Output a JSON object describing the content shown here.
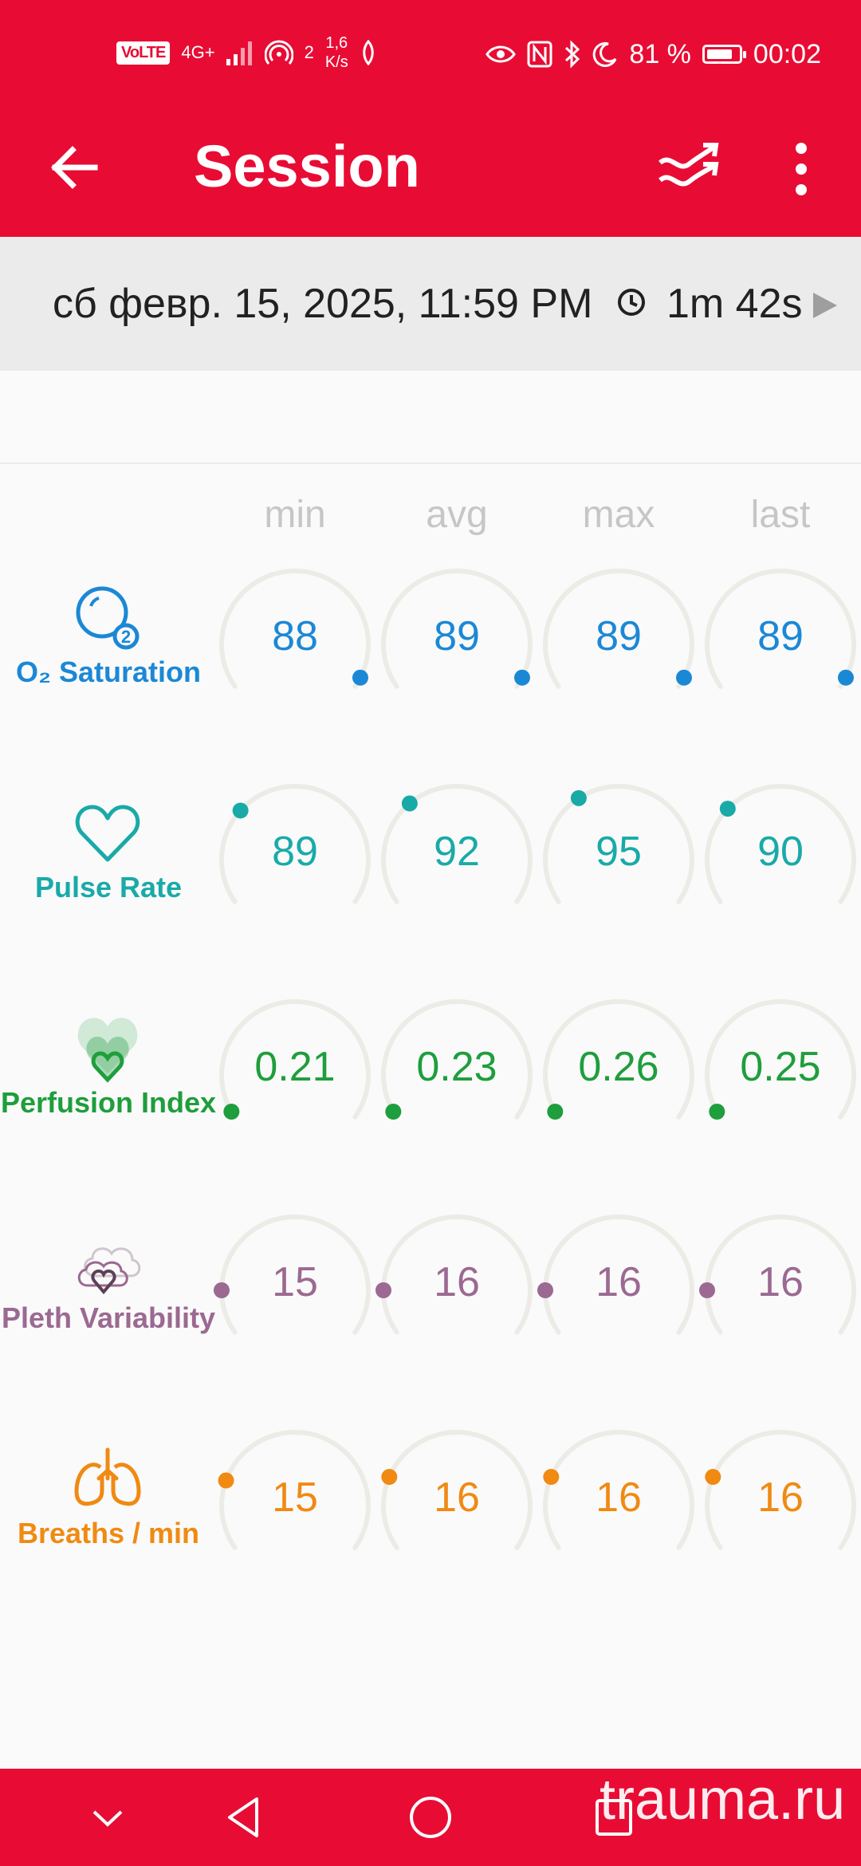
{
  "statusbar": {
    "volte": "VoLTE",
    "network": "4G+",
    "hotspot_count": "2",
    "speed_value": "1,6",
    "speed_unit": "K/s",
    "battery_percent": "81 %",
    "battery_level": 0.81,
    "time": "00:02"
  },
  "toolbar": {
    "title": "Session"
  },
  "session": {
    "datetime": "сб февр. 15, 2025, 11:59 PM",
    "duration": "1m 42s"
  },
  "columns": [
    "min",
    "avg",
    "max",
    "last"
  ],
  "metrics": [
    {
      "label": "O₂ Saturation",
      "icon": "o2-saturation-icon",
      "color": "#1b88d6",
      "values": [
        "88",
        "89",
        "89",
        "89"
      ]
    },
    {
      "label": "Pulse Rate",
      "icon": "heart-icon",
      "color": "#19aaa8",
      "values": [
        "89",
        "92",
        "95",
        "90"
      ]
    },
    {
      "label": "Perfusion Index",
      "icon": "perfusion-hearts-icon",
      "color": "#1e9e3c",
      "values": [
        "0.21",
        "0.23",
        "0.26",
        "0.25"
      ]
    },
    {
      "label": "Pleth Variability",
      "icon": "pleth-clouds-icon",
      "color": "#9b6991",
      "values": [
        "15",
        "16",
        "16",
        "16"
      ]
    },
    {
      "label": "Breaths / min",
      "icon": "lungs-icon",
      "color": "#f08a12",
      "values": [
        "15",
        "16",
        "16",
        "16"
      ]
    }
  ],
  "navbar": {
    "watermark": "trauma.ru"
  },
  "colors": {
    "brand": "#e80c34",
    "gauge_track": "#ecebe6",
    "column_header": "#c6c6c6"
  }
}
